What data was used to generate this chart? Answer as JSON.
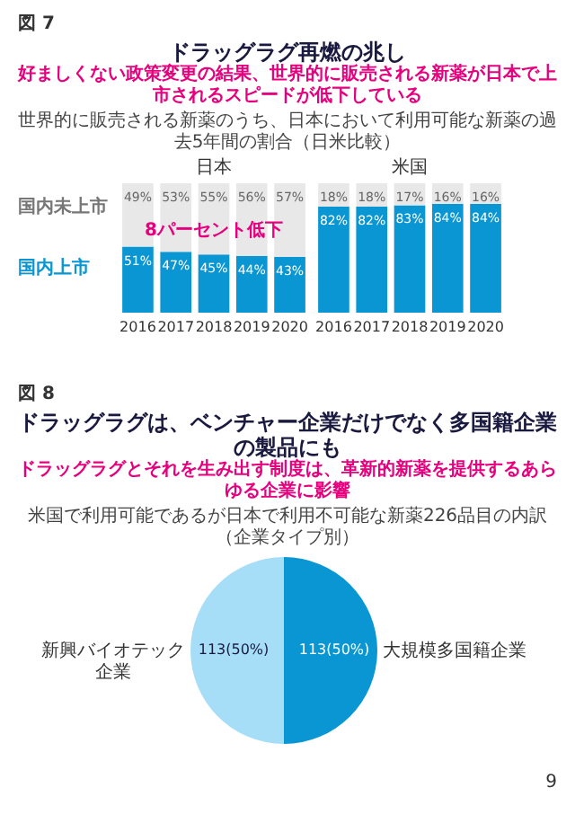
{
  "chart_data": [
    {
      "type": "bar",
      "title": "日本",
      "stacked": true,
      "categories": [
        "2016",
        "2017",
        "2018",
        "2019",
        "2020"
      ],
      "annotations": [
        "図 7",
        "ドラッグラグ再燃の兆し",
        "好ましくない政策変更の結果、世界的に販売される新薬が日本で上市されるスピードが低下している",
        "世界的に販売される新薬のうち、日本において利用可能な新薬の過去5年間の割合（日米比較）",
        "8パーセント低下"
      ],
      "series": [
        {
          "name": "国内上市",
          "color": "#0a96d2",
          "values": [
            51,
            47,
            45,
            44,
            43
          ],
          "value_labels": [
            "51%",
            "47%",
            "45%",
            "44%",
            "43%"
          ]
        },
        {
          "name": "国内未上市",
          "color": "#e8e8e8",
          "values": [
            49,
            53,
            55,
            56,
            57
          ],
          "value_labels": [
            "49%",
            "53%",
            "55%",
            "56%",
            "57%"
          ]
        }
      ]
    },
    {
      "type": "bar",
      "title": "米国",
      "stacked": true,
      "categories": [
        "2016",
        "2017",
        "2018",
        "2019",
        "2020"
      ],
      "series": [
        {
          "color": "#0a96d2",
          "values": [
            82,
            82,
            83,
            84,
            84
          ],
          "value_labels": [
            "82%",
            "82%",
            "83%",
            "84%",
            "84%"
          ]
        },
        {
          "color": "#e8e8e8",
          "values": [
            18,
            18,
            17,
            16,
            16
          ],
          "value_labels": [
            "18%",
            "18%",
            "17%",
            "16%",
            "16%"
          ]
        }
      ]
    },
    {
      "type": "pie",
      "title": "ドラッグラグは、ベンチャー企業だけでなく多国籍企業の製品にも",
      "subtitle": "ドラッグラグとそれを生み出す制度は、革新的新薬を提供するあらゆる企業に影響",
      "annotations": [
        "図 8",
        "米国で利用可能であるが日本で利用不可能な新薬226品目の内訳（企業タイプ別）",
        "9"
      ],
      "categories": [
        "新興バイオテック企業",
        "大規模多国籍企業"
      ],
      "values": [
        113,
        113
      ],
      "colors": [
        "#a6def7",
        "#0a96d2"
      ],
      "value_labels": [
        "113(50%)",
        "113(50%)"
      ]
    }
  ]
}
